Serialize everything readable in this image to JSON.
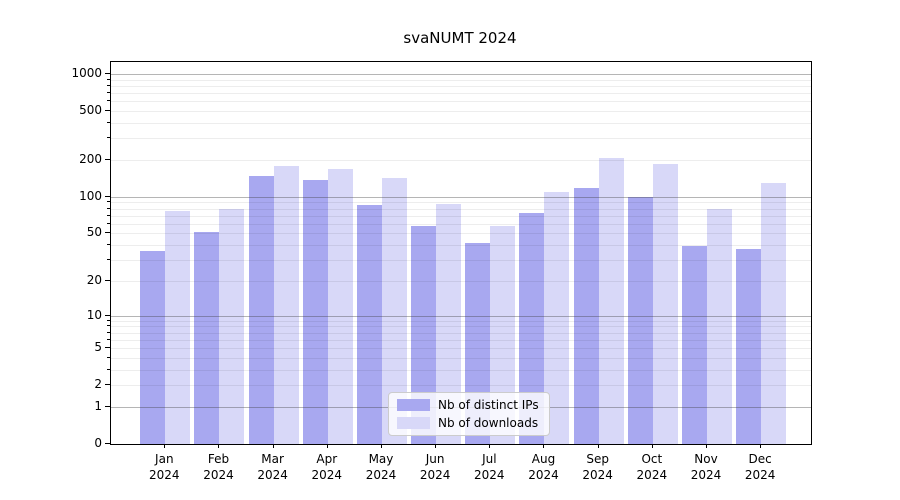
{
  "title": "svaNUMT 2024",
  "chart_data": {
    "type": "bar",
    "title": "svaNUMT 2024",
    "categories": [
      "Jan 2024",
      "Feb 2024",
      "Mar 2024",
      "Apr 2024",
      "May 2024",
      "Jun 2024",
      "Jul 2024",
      "Aug 2024",
      "Sep 2024",
      "Oct 2024",
      "Nov 2024",
      "Dec 2024"
    ],
    "month_labels": [
      "Jan",
      "Feb",
      "Mar",
      "Apr",
      "May",
      "Jun",
      "Jul",
      "Aug",
      "Sep",
      "Oct",
      "Nov",
      "Dec"
    ],
    "year": "2024",
    "series": [
      {
        "name": "Nb of distinct IPs",
        "color": "#a8a8f0",
        "values": [
          36,
          51,
          148,
          136,
          86,
          58,
          42,
          73,
          118,
          99,
          39,
          37
        ]
      },
      {
        "name": "Nb of downloads",
        "color": "#d8d8f8",
        "values": [
          76,
          80,
          178,
          168,
          142,
          87,
          58,
          110,
          207,
          185,
          80,
          129
        ]
      }
    ],
    "y_axis": {
      "scale": "log1p",
      "ymin": 0,
      "ymax": 1250,
      "tick_values": [
        1000,
        500,
        200,
        100,
        50,
        20,
        10,
        5,
        2,
        1,
        0
      ],
      "tick_labels": [
        "1000",
        "500",
        "200",
        "100",
        "50",
        "20",
        "10",
        "5",
        "2",
        "1",
        "0"
      ],
      "major_gridlines": [
        1,
        10,
        100,
        1000
      ]
    },
    "grid": true,
    "legend_position": "lower center"
  },
  "legend": {
    "items": [
      "Nb of distinct IPs",
      "Nb of downloads"
    ]
  }
}
